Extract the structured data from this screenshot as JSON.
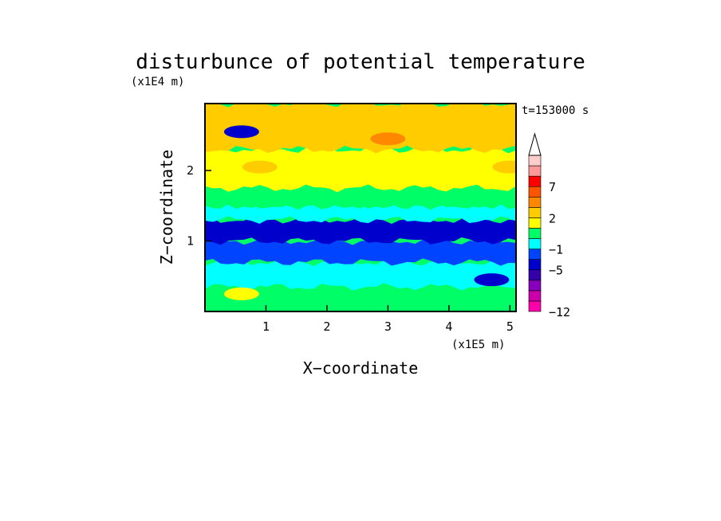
{
  "chart_data": {
    "type": "heatmap",
    "title": "disturbunce of potential temperature",
    "time_label": "t=153000 s",
    "xlabel": "X−coordinate",
    "ylabel": "Z−coordinate",
    "x_unit": "(x1E5 m)",
    "y_unit": "(x1E4 m)",
    "x_ticks": [
      "1",
      "2",
      "3",
      "4",
      "5"
    ],
    "y_ticks": [
      "1",
      "2"
    ],
    "xlim": [
      0,
      5.1
    ],
    "ylim": [
      0,
      2.95
    ],
    "colorbar": {
      "labels": [
        "−12",
        "−5",
        "−1",
        "2",
        "7"
      ],
      "colors": [
        "#ff00aa",
        "#cc00aa",
        "#8800bb",
        "#3300aa",
        "#0000cc",
        "#0044ff",
        "#00ffff",
        "#00ff66",
        "#ffff00",
        "#ffcc00",
        "#ff8800",
        "#ff5500",
        "#ff0000",
        "#ff9999",
        "#ffcccc"
      ],
      "extend": "max"
    },
    "bands": [
      {
        "z": [
          0,
          0.35
        ],
        "color": "#00ff66"
      },
      {
        "z": [
          0.35,
          0.7
        ],
        "color": "#00ffff"
      },
      {
        "z": [
          0.7,
          1.0
        ],
        "color": "#0044ff"
      },
      {
        "z": [
          1.0,
          1.3
        ],
        "color": "#0000cc"
      },
      {
        "z": [
          1.3,
          1.5
        ],
        "color": "#00ffff"
      },
      {
        "z": [
          1.5,
          1.75
        ],
        "color": "#00ff66"
      },
      {
        "z": [
          1.75,
          2.3
        ],
        "color": "#ffff00"
      },
      {
        "z": [
          2.3,
          2.95
        ],
        "color": "#ffcc00"
      }
    ],
    "features": [
      {
        "x": 0.6,
        "z": 2.55,
        "value": -5,
        "color": "#0000cc"
      },
      {
        "x": 3.0,
        "z": 2.45,
        "value": 4,
        "color": "#ff8800"
      },
      {
        "x": 0.9,
        "z": 2.05,
        "value": 2,
        "color": "#ffcc00"
      },
      {
        "x": 5.0,
        "z": 2.05,
        "value": 2,
        "color": "#ffcc00"
      },
      {
        "x": 0.6,
        "z": 0.25,
        "value": 0,
        "color": "#ffff00"
      },
      {
        "x": 4.7,
        "z": 0.45,
        "value": -5,
        "color": "#0000cc"
      }
    ]
  }
}
